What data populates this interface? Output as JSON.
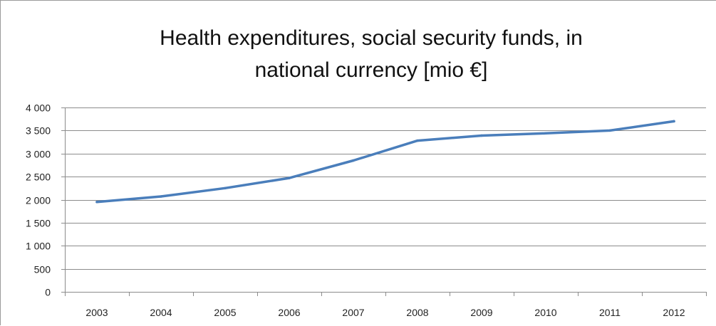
{
  "chart_data": {
    "type": "line",
    "title_line1": "Health expenditures, social security funds, in",
    "title_line2": "national currency [mio €]",
    "xlabel": "",
    "ylabel": "",
    "ylim": [
      0,
      4000
    ],
    "y_ticks": [
      0,
      500,
      1000,
      1500,
      2000,
      2500,
      3000,
      3500,
      4000
    ],
    "y_tick_labels": [
      "0",
      "500",
      "1 000",
      "1 500",
      "2 000",
      "2 500",
      "3 000",
      "3 500",
      "4 000"
    ],
    "categories": [
      "2003",
      "2004",
      "2005",
      "2006",
      "2007",
      "2008",
      "2009",
      "2010",
      "2011",
      "2012"
    ],
    "series": [
      {
        "values": [
          1950,
          2070,
          2250,
          2470,
          2850,
          3280,
          3390,
          3440,
          3500,
          3700
        ],
        "color": "#4a7ebb"
      }
    ],
    "grid": true,
    "legend": "none"
  }
}
